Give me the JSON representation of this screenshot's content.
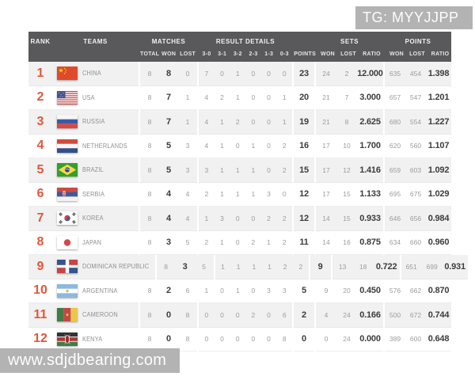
{
  "watermarks": {
    "top_right": "TG: MYYJJPP",
    "bottom_left": "www.sdjdbearing.com"
  },
  "colors": {
    "accent_rank": "#e0573c",
    "header_bg": "#59595c",
    "stripe_row": "#f1f1f1",
    "watermark_bg": "#b3b3b3",
    "bold_text": "#3c3c3c",
    "muted_text": "#9c9c9c"
  },
  "header": {
    "rank": "RANK",
    "teams": "TEAMS",
    "groups": {
      "matches": "MATCHES",
      "result_details": "RESULT DETAILS",
      "sets": "SETS",
      "points": "POINTS"
    },
    "sub": {
      "total": "TOTAL",
      "won": "WON",
      "lost": "LOST",
      "r30": "3-0",
      "r31": "3-1",
      "r32": "3-2",
      "r23": "2-3",
      "r13": "1-3",
      "r03": "0-3",
      "points": "POINTS",
      "sets_won": "WON",
      "sets_lost": "LOST",
      "sets_ratio": "RATIO",
      "pts_won": "WON",
      "pts_lost": "LOST",
      "pts_ratio": "RATIO"
    }
  },
  "rows": [
    {
      "rank": "1",
      "team": "CHINA",
      "flag": "china",
      "matches": {
        "total": "8",
        "won": "8",
        "lost": "0"
      },
      "results": [
        "7",
        "0",
        "1",
        "0",
        "0",
        "0"
      ],
      "points": "23",
      "sets": {
        "won": "24",
        "lost": "2",
        "ratio": "12.000"
      },
      "points_detail": {
        "won": "635",
        "lost": "454",
        "ratio": "1.398"
      }
    },
    {
      "rank": "2",
      "team": "USA",
      "flag": "usa",
      "matches": {
        "total": "8",
        "won": "7",
        "lost": "1"
      },
      "results": [
        "4",
        "2",
        "1",
        "0",
        "0",
        "1"
      ],
      "points": "20",
      "sets": {
        "won": "21",
        "lost": "7",
        "ratio": "3.000"
      },
      "points_detail": {
        "won": "657",
        "lost": "547",
        "ratio": "1.201"
      }
    },
    {
      "rank": "3",
      "team": "RUSSIA",
      "flag": "russia",
      "matches": {
        "total": "8",
        "won": "7",
        "lost": "1"
      },
      "results": [
        "4",
        "1",
        "2",
        "0",
        "0",
        "1"
      ],
      "points": "19",
      "sets": {
        "won": "21",
        "lost": "8",
        "ratio": "2.625"
      },
      "points_detail": {
        "won": "680",
        "lost": "554",
        "ratio": "1.227"
      }
    },
    {
      "rank": "4",
      "team": "NETHERLANDS",
      "flag": "netherlands",
      "matches": {
        "total": "8",
        "won": "5",
        "lost": "3"
      },
      "results": [
        "4",
        "1",
        "0",
        "1",
        "0",
        "2"
      ],
      "points": "16",
      "sets": {
        "won": "17",
        "lost": "10",
        "ratio": "1.700"
      },
      "points_detail": {
        "won": "620",
        "lost": "560",
        "ratio": "1.107"
      }
    },
    {
      "rank": "5",
      "team": "BRAZIL",
      "flag": "brazil",
      "matches": {
        "total": "8",
        "won": "5",
        "lost": "3"
      },
      "results": [
        "3",
        "1",
        "1",
        "1",
        "0",
        "2"
      ],
      "points": "15",
      "sets": {
        "won": "17",
        "lost": "12",
        "ratio": "1.416"
      },
      "points_detail": {
        "won": "659",
        "lost": "603",
        "ratio": "1.092"
      }
    },
    {
      "rank": "6",
      "team": "SERBIA",
      "flag": "serbia",
      "matches": {
        "total": "8",
        "won": "4",
        "lost": "4"
      },
      "results": [
        "2",
        "1",
        "1",
        "1",
        "3",
        "0"
      ],
      "points": "12",
      "sets": {
        "won": "17",
        "lost": "15",
        "ratio": "1.133"
      },
      "points_detail": {
        "won": "695",
        "lost": "675",
        "ratio": "1.029"
      }
    },
    {
      "rank": "7",
      "team": "KOREA",
      "flag": "korea",
      "matches": {
        "total": "8",
        "won": "4",
        "lost": "4"
      },
      "results": [
        "1",
        "3",
        "0",
        "0",
        "2",
        "2"
      ],
      "points": "12",
      "sets": {
        "won": "14",
        "lost": "15",
        "ratio": "0.933"
      },
      "points_detail": {
        "won": "646",
        "lost": "656",
        "ratio": "0.984"
      }
    },
    {
      "rank": "8",
      "team": "JAPAN",
      "flag": "japan",
      "matches": {
        "total": "8",
        "won": "3",
        "lost": "5"
      },
      "results": [
        "2",
        "1",
        "0",
        "2",
        "1",
        "2"
      ],
      "points": "11",
      "sets": {
        "won": "14",
        "lost": "16",
        "ratio": "0.875"
      },
      "points_detail": {
        "won": "634",
        "lost": "660",
        "ratio": "0.960"
      }
    },
    {
      "rank": "9",
      "team": "DOMINICAN REPUBLIC",
      "flag": "dominican-republic",
      "matches": {
        "total": "8",
        "won": "3",
        "lost": "5"
      },
      "results": [
        "1",
        "1",
        "1",
        "1",
        "2",
        "2"
      ],
      "points": "9",
      "sets": {
        "won": "13",
        "lost": "18",
        "ratio": "0.722"
      },
      "points_detail": {
        "won": "651",
        "lost": "699",
        "ratio": "0.931"
      }
    },
    {
      "rank": "10",
      "team": "ARGENTINA",
      "flag": "argentina",
      "matches": {
        "total": "8",
        "won": "2",
        "lost": "6"
      },
      "results": [
        "1",
        "0",
        "1",
        "0",
        "3",
        "3"
      ],
      "points": "5",
      "sets": {
        "won": "9",
        "lost": "20",
        "ratio": "0.450"
      },
      "points_detail": {
        "won": "576",
        "lost": "662",
        "ratio": "0.870"
      }
    },
    {
      "rank": "11",
      "team": "CAMEROON",
      "flag": "cameroon",
      "matches": {
        "total": "8",
        "won": "0",
        "lost": "8"
      },
      "results": [
        "0",
        "0",
        "0",
        "2",
        "0",
        "6"
      ],
      "points": "2",
      "sets": {
        "won": "4",
        "lost": "24",
        "ratio": "0.166"
      },
      "points_detail": {
        "won": "500",
        "lost": "672",
        "ratio": "0.744"
      }
    },
    {
      "rank": "12",
      "team": "KENYA",
      "flag": "kenya",
      "matches": {
        "total": "8",
        "won": "0",
        "lost": "8"
      },
      "results": [
        "0",
        "0",
        "0",
        "0",
        "0",
        "8"
      ],
      "points": "0",
      "sets": {
        "won": "0",
        "lost": "24",
        "ratio": "0.000"
      },
      "points_detail": {
        "won": "389",
        "lost": "600",
        "ratio": "0.648"
      }
    }
  ]
}
